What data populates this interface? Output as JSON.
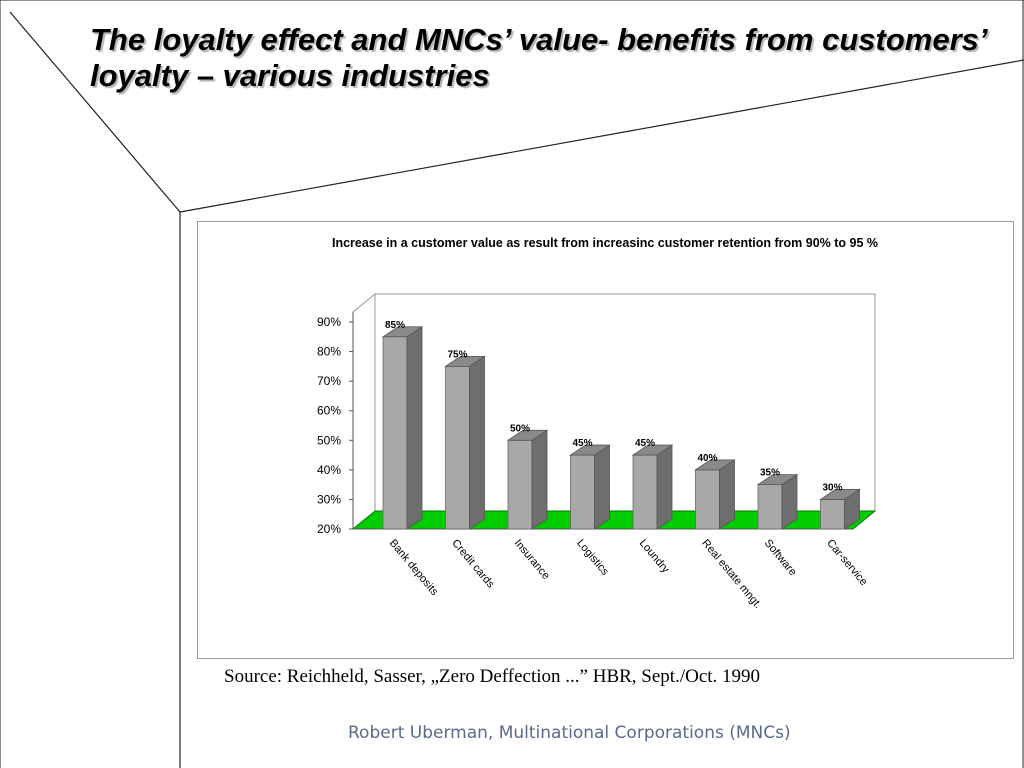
{
  "slide": {
    "title": "The loyalty effect and MNCs’ value- benefits from customers’ loyalty – various industries",
    "source": "Source: Reichheld, Sasser, „Zero Deffection ...” HBR, Sept./Oct. 1990",
    "footer": "Robert Uberman, Multinational Corporations (MNCs)"
  },
  "chart_data": {
    "type": "bar",
    "title": "Increase in a customer value as result from increasinc customer retention from 90% to 95 %",
    "categories": [
      "Bank deposits",
      "Credit cards",
      "Insurance",
      "Logistics",
      "Loundry",
      "Real estate mngt.",
      "Software",
      "Car-service"
    ],
    "values": [
      85,
      75,
      50,
      45,
      45,
      40,
      35,
      30
    ],
    "value_labels": [
      "85%",
      "75%",
      "50%",
      "45%",
      "45%",
      "40%",
      "35%",
      "30%"
    ],
    "y_ticks": [
      "20%",
      "30%",
      "40%",
      "50%",
      "60%",
      "70%",
      "80%",
      "90%"
    ],
    "ylim": [
      20,
      90
    ],
    "xlabel": "",
    "ylabel": "",
    "style": "3d",
    "bar_color": "#a8a8a8",
    "floor_color": "#00cc00",
    "legend": "none"
  }
}
